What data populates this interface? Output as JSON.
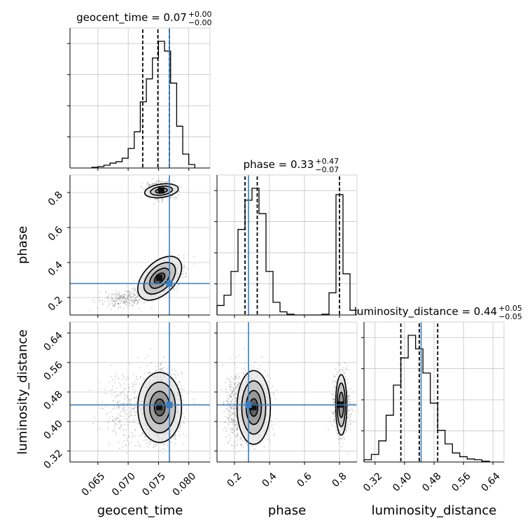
{
  "chart_data": {
    "type": "corner",
    "colors": {
      "truth": "#3a7dbd",
      "hist": "#000000",
      "grid": "#b0b0b0",
      "points": "#909090"
    },
    "parameters": [
      {
        "key": "geocent_time",
        "label": "geocent_time",
        "range": [
          0.0604,
          0.0835
        ],
        "ticks": [
          0.065,
          0.07,
          0.075,
          0.08
        ],
        "tick_labels": [
          "0.065",
          "0.070",
          "0.075",
          "0.080"
        ]
      },
      {
        "key": "phase",
        "label": "phase",
        "range": [
          0.1,
          0.9
        ],
        "ticks": [
          0.2,
          0.4,
          0.6,
          0.8
        ],
        "tick_labels": [
          "0.2",
          "0.4",
          "0.6",
          "0.8"
        ]
      },
      {
        "key": "luminosity_distance",
        "label": "luminosity_distance",
        "range": [
          0.29,
          0.67
        ],
        "ticks": [
          0.32,
          0.4,
          0.48,
          0.56,
          0.64
        ],
        "tick_labels": [
          "0.32",
          "0.40",
          "0.48",
          "0.56",
          "0.64"
        ]
      }
    ],
    "titles": [
      {
        "name": "geocent_time",
        "value": "0.07",
        "plus": "+0.00",
        "minus": "−0.00"
      },
      {
        "name": "phase",
        "value": "0.33",
        "plus": "+0.47",
        "minus": "−0.07"
      },
      {
        "name": "luminosity_distance",
        "value": "0.44",
        "plus": "+0.05",
        "minus": "−0.05"
      }
    ],
    "truths": {
      "geocent_time": 0.0768,
      "phase": 0.28,
      "luminosity_distance": 0.445
    },
    "quantiles": {
      "geocent_time": [
        0.0724,
        0.0749,
        0.0768
      ],
      "phase": [
        0.26,
        0.33,
        0.8
      ],
      "luminosity_distance": [
        0.39,
        0.44,
        0.49
      ]
    },
    "histograms": {
      "geocent_time": {
        "edges": [
          0.064,
          0.065,
          0.066,
          0.067,
          0.068,
          0.069,
          0.07,
          0.071,
          0.072,
          0.073,
          0.074,
          0.075,
          0.076,
          0.077,
          0.078,
          0.079,
          0.08,
          0.081
        ],
        "counts": [
          1,
          2,
          4,
          7,
          9,
          14,
          28,
          52,
          95,
          128,
          158,
          182,
          168,
          122,
          60,
          20,
          5
        ]
      },
      "phase": {
        "edges": [
          0.1,
          0.14,
          0.18,
          0.22,
          0.26,
          0.3,
          0.34,
          0.38,
          0.42,
          0.46,
          0.5,
          0.54,
          0.58,
          0.62,
          0.66,
          0.7,
          0.74,
          0.78,
          0.82,
          0.86,
          0.9
        ],
        "counts": [
          12,
          25,
          55,
          108,
          145,
          160,
          128,
          55,
          16,
          4,
          1,
          0,
          0,
          0,
          0,
          1,
          28,
          152,
          52,
          6
        ]
      },
      "luminosity_distance": {
        "edges": [
          0.29,
          0.31,
          0.33,
          0.35,
          0.37,
          0.39,
          0.41,
          0.43,
          0.45,
          0.47,
          0.49,
          0.51,
          0.53,
          0.55,
          0.57,
          0.59,
          0.61,
          0.63
        ],
        "counts": [
          3,
          10,
          28,
          62,
          102,
          138,
          168,
          150,
          118,
          78,
          42,
          24,
          12,
          7,
          4,
          3,
          1
        ]
      }
    }
  }
}
